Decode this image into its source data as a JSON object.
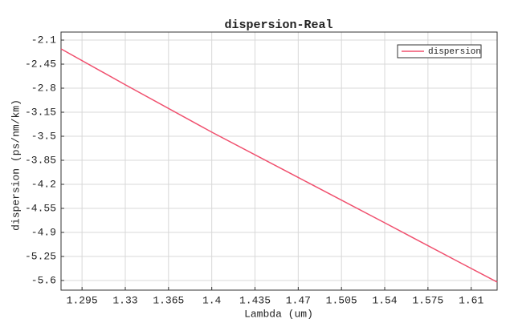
{
  "chart_data": {
    "type": "line",
    "title": "dispersion-Real",
    "x_label": "Lambda (um)",
    "y_label": "dispersion (ps/nm/km)",
    "x": [
      1.278,
      1.33,
      1.4,
      1.47,
      1.54,
      1.6,
      1.631
    ],
    "series": [
      {
        "name": "dispersion",
        "color": "#f0506e",
        "values": [
          -2.228,
          -2.75,
          -3.44,
          -4.1,
          -4.76,
          -5.33,
          -5.623
        ]
      }
    ],
    "xlim": [
      1.278,
      1.631
    ],
    "xticks": [
      1.295,
      1.33,
      1.365,
      1.4,
      1.435,
      1.47,
      1.505,
      1.54,
      1.575,
      1.61
    ],
    "ylim": [
      -5.74,
      -1.983
    ],
    "yticks": [
      -2.1,
      -2.45,
      -2.8,
      -3.15,
      -3.5,
      -3.85,
      -4.2,
      -4.55,
      -4.9,
      -5.25,
      -5.6
    ],
    "grid": true,
    "legend": "upper right"
  }
}
